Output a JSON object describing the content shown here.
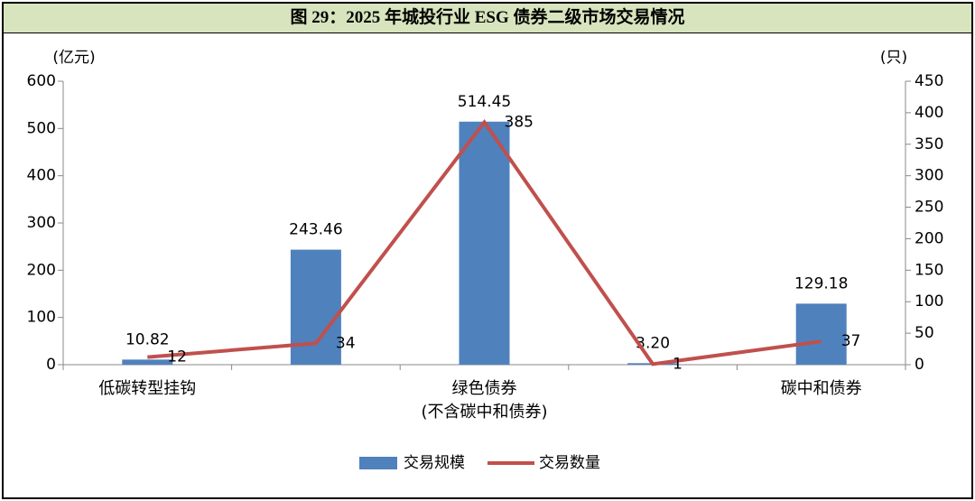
{
  "title": "图 29：2025 年城投行业 ESG 债券二级市场交易情况",
  "chart_data": {
    "type": "bar_line",
    "y_label": "(亿元)",
    "y2_label": "(只)",
    "categories": [
      "低碳转型挂钩",
      null,
      "绿色债券\n(不含碳中和债券)",
      null,
      "碳中和债券"
    ],
    "series": [
      {
        "name": "交易规模",
        "type": "bar",
        "color": "#4f81bd",
        "values": [
          10.82,
          243.46,
          514.45,
          3.2,
          129.18
        ],
        "value_labels": [
          "10.82",
          "243.46",
          "514.45",
          "3.20",
          "129.18"
        ]
      },
      {
        "name": "交易数量",
        "type": "line",
        "axis": "y2",
        "color": "#c0504d",
        "values": [
          12,
          34,
          385,
          1,
          37
        ]
      }
    ],
    "ylim": [
      0,
      600
    ],
    "yticks": [
      0,
      100,
      200,
      300,
      400,
      500,
      600
    ],
    "y2lim": [
      0,
      450
    ],
    "y2ticks": [
      0,
      50,
      100,
      150,
      200,
      250,
      300,
      350,
      400,
      450
    ],
    "grid": false,
    "legend": "bottom"
  }
}
